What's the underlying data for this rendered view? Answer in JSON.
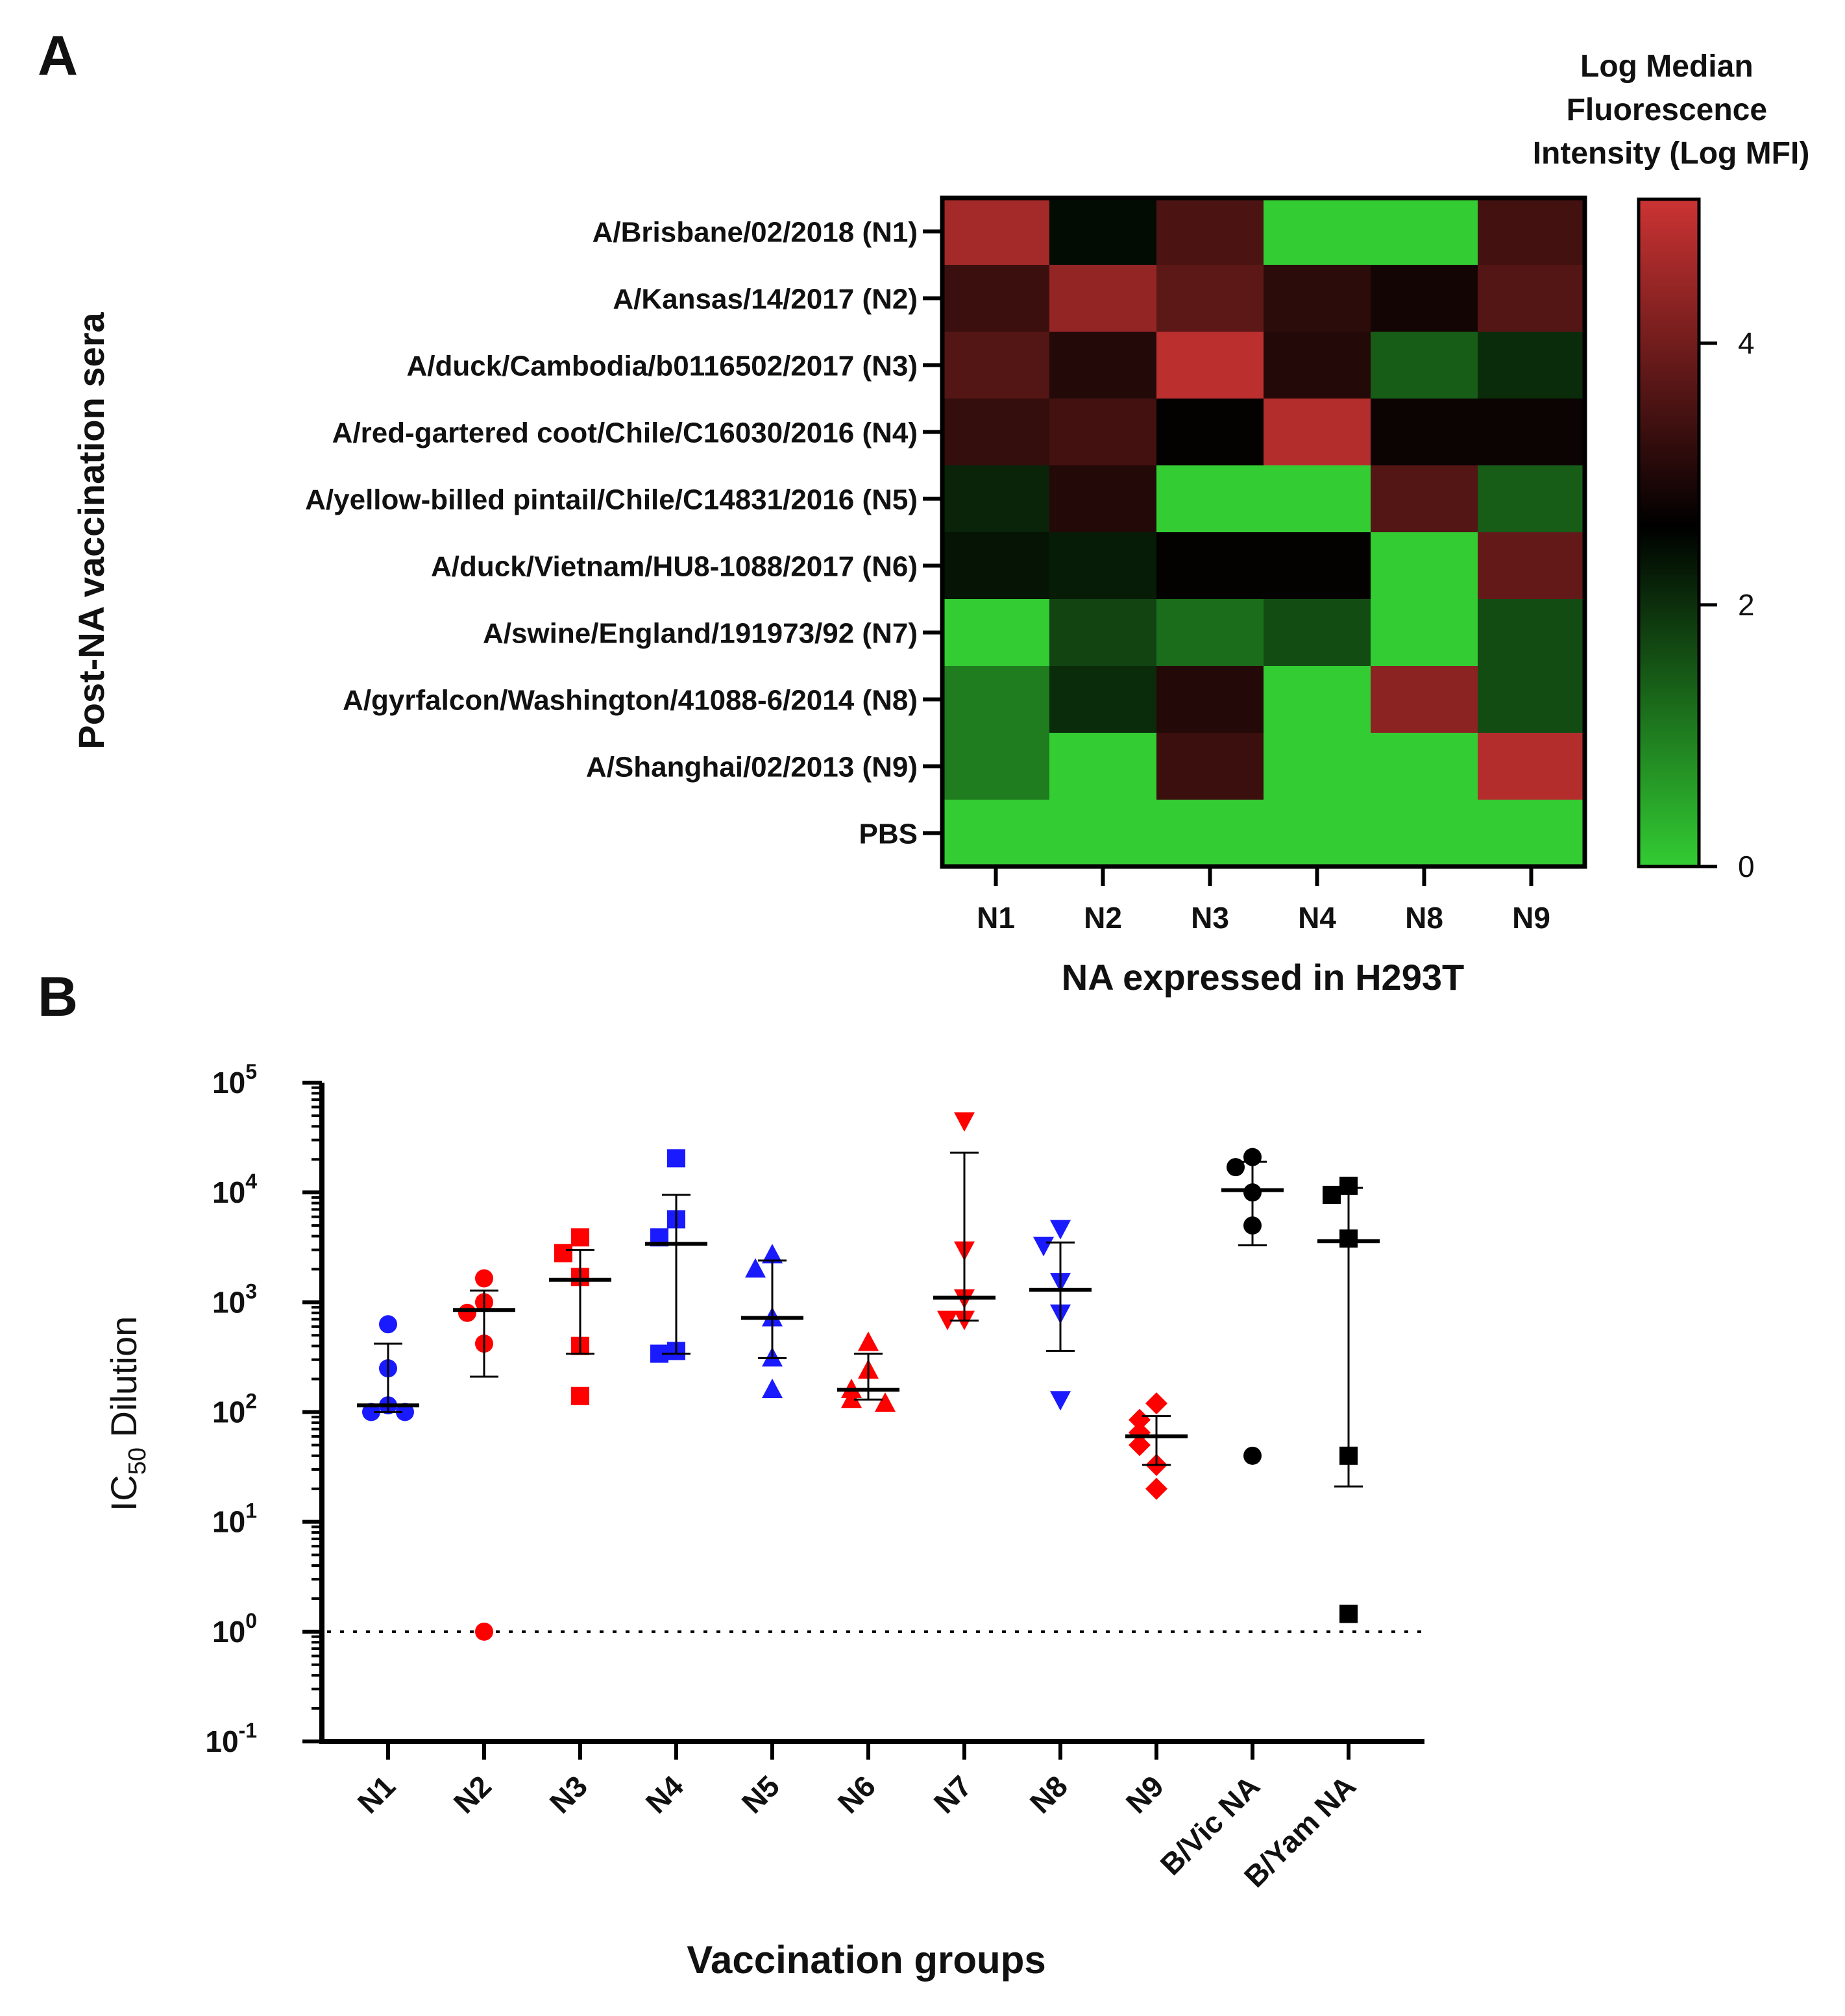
{
  "panels": {
    "a_label": "A",
    "b_label": "B"
  },
  "colors": {
    "green": "#33cc33",
    "black": "#000000",
    "red": "#cc3333",
    "blue": "#1a1aff",
    "point_red": "#ff0000"
  },
  "chart_data": [
    {
      "type": "heatmap",
      "title": "",
      "xlabel": "NA expressed in H293T",
      "ylabel": "Post-NA vaccination sera",
      "x_categories": [
        "N1",
        "N2",
        "N3",
        "N4",
        "N8",
        "N9"
      ],
      "y_categories": [
        "A/Brisbane/02/2018 (N1)",
        "A/Kansas/14/2017 (N2)",
        "A/duck/Cambodia/b0116502/2017 (N3)",
        "A/red-gartered coot/Chile/C16030/2016 (N4)",
        "A/yellow-billed pintail/Chile/C14831/2016 (N5)",
        "A/duck/Vietnam/HU8-1088/2017 (N6)",
        "A/swine/England/191973/92 (N7)",
        "A/gyrfalcon/Washington/41088-6/2014 (N8)",
        "A/Shanghai/02/2013 (N9)",
        "PBS"
      ],
      "values": [
        [
          4.6,
          2.4,
          3.5,
          0.0,
          0.0,
          3.4
        ],
        [
          3.3,
          4.4,
          3.7,
          3.1,
          2.8,
          3.6
        ],
        [
          3.6,
          3.0,
          4.9,
          3.0,
          1.4,
          2.0
        ],
        [
          3.2,
          3.4,
          2.6,
          4.8,
          2.7,
          2.7
        ],
        [
          2.1,
          3.0,
          0.0,
          0.0,
          3.6,
          1.4
        ],
        [
          2.3,
          2.2,
          2.6,
          2.6,
          0.0,
          3.8
        ],
        [
          0.0,
          1.7,
          1.2,
          1.6,
          0.0,
          1.6
        ],
        [
          1.0,
          2.0,
          3.0,
          0.0,
          4.3,
          1.6
        ],
        [
          1.0,
          0.0,
          3.3,
          0.0,
          0.0,
          4.8
        ],
        [
          0.0,
          0.0,
          0.0,
          0.0,
          0.0,
          0.0
        ]
      ],
      "colorbar": {
        "title_lines": [
          "Log Median",
          "Fluorescence",
          "Intensity (Log MFI)"
        ],
        "range": [
          0,
          5.1
        ],
        "ticks": [
          0,
          2,
          4
        ],
        "tick_labels": [
          "0",
          "2",
          "4"
        ],
        "colors": [
          "#33cc33",
          "#000000",
          "#cc3333"
        ]
      }
    },
    {
      "type": "scatter",
      "title": "",
      "xlabel": "Vaccination groups",
      "ylabel_main": "IC",
      "ylabel_sub": "50",
      "ylabel_rest": " Dilution",
      "yscale": "log",
      "ylim_exp": [
        -1,
        5
      ],
      "ytick_exponents": [
        -1,
        0,
        1,
        2,
        3,
        4,
        5
      ],
      "ytick_labels": [
        "-1",
        "0",
        "1",
        "2",
        "3",
        "4",
        "5"
      ],
      "ytick_base": "10",
      "reference_line": 1,
      "categories": [
        "N1",
        "N2",
        "N3",
        "N4",
        "N5",
        "N6",
        "N7",
        "N8",
        "N9",
        "B/Vic NA",
        "B/Yam NA"
      ],
      "groups": [
        {
          "name": "N1",
          "color": "blue",
          "marker": "circle",
          "points": [
            630,
            250,
            115,
            100,
            100
          ],
          "median": 115,
          "err": [
            100,
            420
          ]
        },
        {
          "name": "N2",
          "color": "red",
          "marker": "circle",
          "points": [
            1650,
            1000,
            800,
            420,
            1
          ],
          "median": 850,
          "err": [
            210,
            1280
          ]
        },
        {
          "name": "N3",
          "color": "red",
          "marker": "square",
          "points": [
            3900,
            2800,
            1700,
            400,
            140
          ],
          "median": 1600,
          "err": [
            340,
            3000
          ]
        },
        {
          "name": "N4",
          "color": "blue",
          "marker": "square",
          "points": [
            20500,
            5700,
            3900,
            360,
            340
          ],
          "median": 3400,
          "err": [
            340,
            9500
          ]
        },
        {
          "name": "N5",
          "color": "blue",
          "marker": "triangle-up",
          "points": [
            2700,
            2000,
            720,
            310,
            160
          ],
          "median": 720,
          "err": [
            310,
            2400
          ]
        },
        {
          "name": "N6",
          "color": "red",
          "marker": "triangle-up",
          "points": [
            430,
            240,
            160,
            130,
            120
          ],
          "median": 160,
          "err": [
            130,
            340
          ]
        },
        {
          "name": "N7",
          "color": "red",
          "marker": "triangle-down",
          "points": [
            45000,
            3000,
            1100,
            700,
            700
          ],
          "median": 1100,
          "err": [
            680,
            23000
          ]
        },
        {
          "name": "N8",
          "color": "blue",
          "marker": "triangle-down",
          "points": [
            4700,
            3300,
            1550,
            800,
            130
          ],
          "median": 1300,
          "err": [
            360,
            3500
          ]
        },
        {
          "name": "N9",
          "color": "red",
          "marker": "diamond",
          "points": [
            120,
            85,
            65,
            50,
            33,
            20
          ],
          "median": 60,
          "err": [
            33,
            92
          ]
        },
        {
          "name": "B/Vic NA",
          "color": "black",
          "marker": "circle",
          "points": [
            21000,
            17000,
            10000,
            5000,
            40
          ],
          "median": 10500,
          "err": [
            3300,
            19000
          ]
        },
        {
          "name": "B/Yam NA",
          "color": "black",
          "marker": "square",
          "points": [
            11500,
            9500,
            3800,
            40,
            1.45
          ],
          "median": 3600,
          "err": [
            21,
            11000
          ]
        }
      ]
    }
  ]
}
